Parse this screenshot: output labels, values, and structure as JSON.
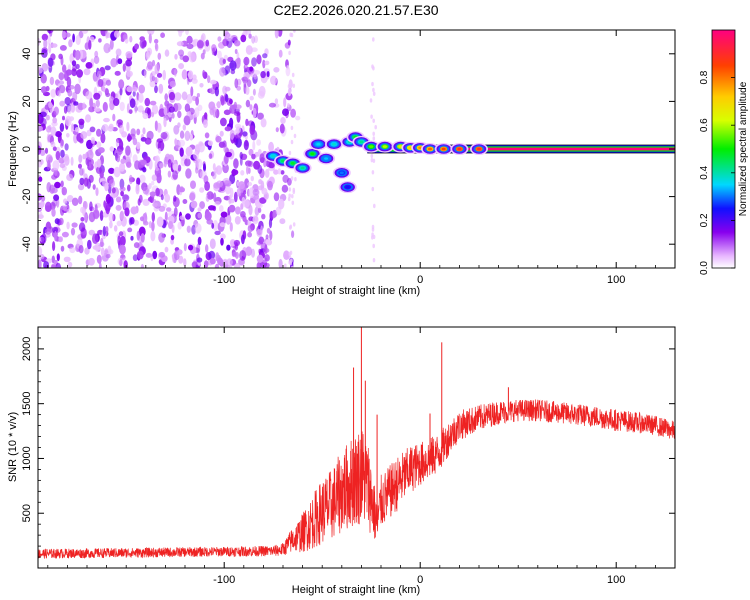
{
  "title": "C2E2.2026.020.21.57.E30",
  "chart_data": [
    {
      "type": "heatmap",
      "panel": "top",
      "title": "C2E2.2026.020.21.57.E30",
      "xlabel": "Height of straight line (km)",
      "ylabel": "Frequency (Hz)",
      "xlim": [
        -195,
        130
      ],
      "ylim": [
        -50,
        50
      ],
      "x_ticks": [
        -100,
        0,
        100
      ],
      "x_tick_labels": [
        "-100",
        "0",
        "100"
      ],
      "y_ticks": [
        -40,
        -20,
        0,
        20,
        40
      ],
      "y_tick_labels": [
        "-40",
        "-20",
        "0",
        "20",
        "40"
      ],
      "colorbar": {
        "label": "Normalized spectral amplitude",
        "range": [
          0,
          1
        ],
        "ticks": [
          0,
          0.2,
          0.4,
          0.6,
          0.8
        ],
        "tick_labels": [
          "0.0",
          "0.2",
          "0.4",
          "0.6",
          "0.8"
        ]
      },
      "noise_region_km": [
        -195,
        -65
      ],
      "carrier_track": {
        "x_start_km": -27,
        "x_end_km": 130,
        "frequency_hz": 0,
        "amplitude": 1.0
      },
      "signal_blobs": [
        {
          "x": -75,
          "y": -3,
          "a": 0.38
        },
        {
          "x": -70,
          "y": -5,
          "a": 0.45
        },
        {
          "x": -65,
          "y": -6,
          "a": 0.48
        },
        {
          "x": -60,
          "y": -8,
          "a": 0.42
        },
        {
          "x": -55,
          "y": -2,
          "a": 0.5
        },
        {
          "x": -52,
          "y": 2,
          "a": 0.36
        },
        {
          "x": -48,
          "y": -4,
          "a": 0.34
        },
        {
          "x": -44,
          "y": 2,
          "a": 0.38
        },
        {
          "x": -40,
          "y": -10,
          "a": 0.3
        },
        {
          "x": -37,
          "y": -16,
          "a": 0.25
        },
        {
          "x": -36,
          "y": 3,
          "a": 0.4
        },
        {
          "x": -33,
          "y": 5,
          "a": 0.48
        },
        {
          "x": -30,
          "y": 3,
          "a": 0.42
        },
        {
          "x": -25,
          "y": 1,
          "a": 0.55
        },
        {
          "x": -18,
          "y": 1,
          "a": 0.6
        },
        {
          "x": -10,
          "y": 1,
          "a": 0.65
        },
        {
          "x": -5,
          "y": 0.5,
          "a": 0.72
        },
        {
          "x": 0,
          "y": 0.5,
          "a": 0.78
        },
        {
          "x": 5,
          "y": 0,
          "a": 0.82
        },
        {
          "x": 12,
          "y": 0,
          "a": 0.86
        },
        {
          "x": 20,
          "y": 0,
          "a": 0.9
        },
        {
          "x": 30,
          "y": 0,
          "a": 0.9
        }
      ]
    },
    {
      "type": "line",
      "panel": "bottom",
      "xlabel": "Height of straight line (km)",
      "ylabel": "SNR (10 * v/v)",
      "xlim": [
        -195,
        130
      ],
      "ylim": [
        0,
        2200
      ],
      "x_ticks": [
        -100,
        0,
        100
      ],
      "x_tick_labels": [
        "-100",
        "0",
        "100"
      ],
      "y_ticks": [
        500,
        1000,
        1500,
        2000
      ],
      "y_tick_labels": [
        "500",
        "1000",
        "1500",
        "2000"
      ],
      "series": [
        {
          "name": "SNR",
          "color": "#ee2222",
          "envelope_x": [
            -195,
            -140,
            -100,
            -75,
            -70,
            -65,
            -60,
            -55,
            -50,
            -45,
            -40,
            -35,
            -30,
            -27,
            -25,
            -22,
            -20,
            -15,
            -10,
            -5,
            0,
            5,
            10,
            15,
            20,
            30,
            40,
            50,
            60,
            70,
            80,
            90,
            100,
            110,
            120,
            130
          ],
          "envelope_mean": [
            130,
            140,
            150,
            155,
            170,
            260,
            320,
            420,
            520,
            580,
            700,
            780,
            860,
            780,
            650,
            400,
            600,
            700,
            800,
            900,
            950,
            1000,
            1060,
            1200,
            1300,
            1370,
            1420,
            1440,
            1440,
            1420,
            1400,
            1380,
            1350,
            1330,
            1300,
            1250
          ],
          "envelope_noise": [
            45,
            45,
            45,
            50,
            60,
            120,
            180,
            250,
            300,
            330,
            380,
            420,
            460,
            420,
            350,
            220,
            250,
            250,
            250,
            220,
            200,
            190,
            180,
            160,
            140,
            120,
            110,
            100,
            100,
            100,
            100,
            100,
            100,
            95,
            90,
            90
          ],
          "spikes": [
            {
              "x": -34,
              "y": 1830
            },
            {
              "x": -30,
              "y": 2200
            },
            {
              "x": -28,
              "y": 1710
            },
            {
              "x": -22,
              "y": 1400
            },
            {
              "x": 5,
              "y": 1410
            },
            {
              "x": 11,
              "y": 2060
            },
            {
              "x": 45,
              "y": 1650
            }
          ]
        }
      ]
    }
  ]
}
